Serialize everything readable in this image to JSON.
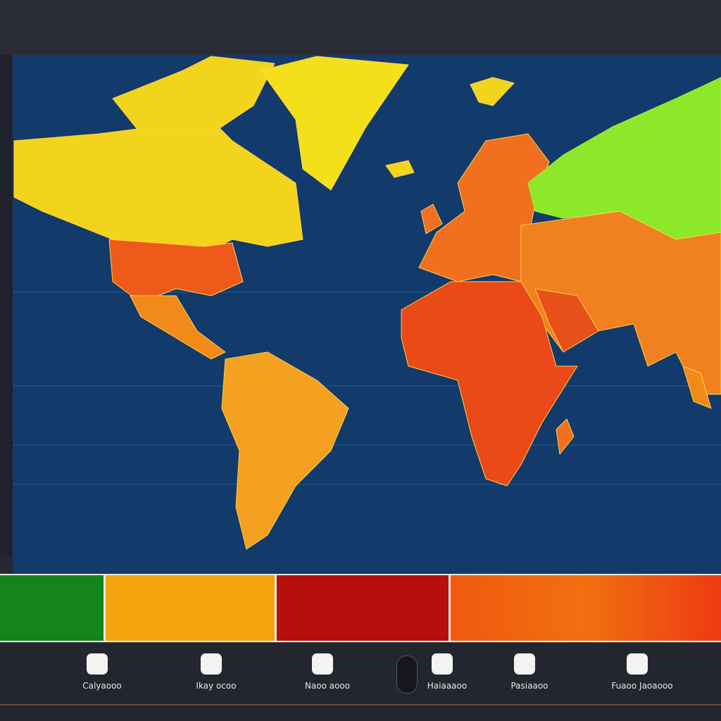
{
  "toolbar": {
    "items": [
      {
        "label": "Calyaooo"
      },
      {
        "label": "Ikay ocoo"
      },
      {
        "label": "Naoo aooo"
      },
      {
        "label": "Haiaaaoo"
      },
      {
        "label": "Pasiaaoo"
      },
      {
        "label": "Fuaoo Jaoaooo"
      }
    ]
  }
}
